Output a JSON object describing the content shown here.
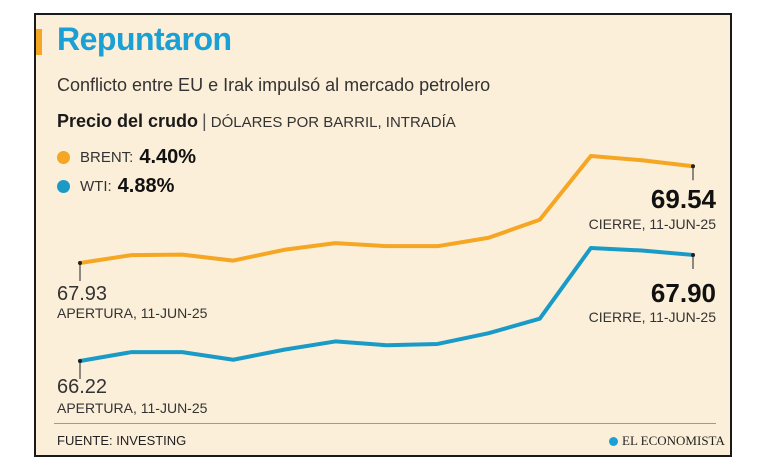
{
  "header": {
    "title": "Repuntaron",
    "subtitle": "Conflicto entre EU e Irak impulsó al mercado petrolero",
    "chart_title": "Precio del crudo",
    "chart_units": "DÓLARES POR BARRIL, INTRADÍA"
  },
  "legend": {
    "brent": {
      "label": "BRENT:",
      "value": "4.40%"
    },
    "wti": {
      "label": "WTI:",
      "value": "4.88%"
    }
  },
  "annotations": {
    "brent_open_value": "67.93",
    "brent_open_caption": "APERTURA, 11-JUN-25",
    "brent_close_value": "69.54",
    "brent_close_caption": "CIERRE, 11-JUN-25",
    "wti_open_value": "66.22",
    "wti_open_caption": "APERTURA, 11-JUN-25",
    "wti_close_value": "67.90",
    "wti_close_caption": "CIERRE, 11-JUN-25"
  },
  "footer": {
    "source": "FUENTE: INVESTING",
    "brand": "EL ECONOMISTA"
  },
  "colors": {
    "brent": "#f5a623",
    "wti": "#1a9bc7",
    "title": "#1aa0d4"
  },
  "chart_data": {
    "type": "line",
    "title": "Precio del crudo",
    "subtitle": "DÓLARES POR BARRIL, INTRADÍA",
    "x": [
      1,
      2,
      3,
      4,
      5,
      6,
      7,
      8,
      9,
      10,
      11,
      12,
      13
    ],
    "series": [
      {
        "name": "BRENT",
        "values": [
          67.93,
          68.06,
          68.07,
          67.97,
          68.15,
          68.26,
          68.21,
          68.21,
          68.35,
          68.65,
          69.71,
          69.64,
          69.54
        ]
      },
      {
        "name": "WTI",
        "values": [
          66.22,
          66.36,
          66.36,
          66.24,
          66.4,
          66.53,
          66.47,
          66.49,
          66.66,
          66.89,
          68.01,
          67.97,
          67.9
        ]
      }
    ],
    "grid": false,
    "legend": "top-left"
  }
}
